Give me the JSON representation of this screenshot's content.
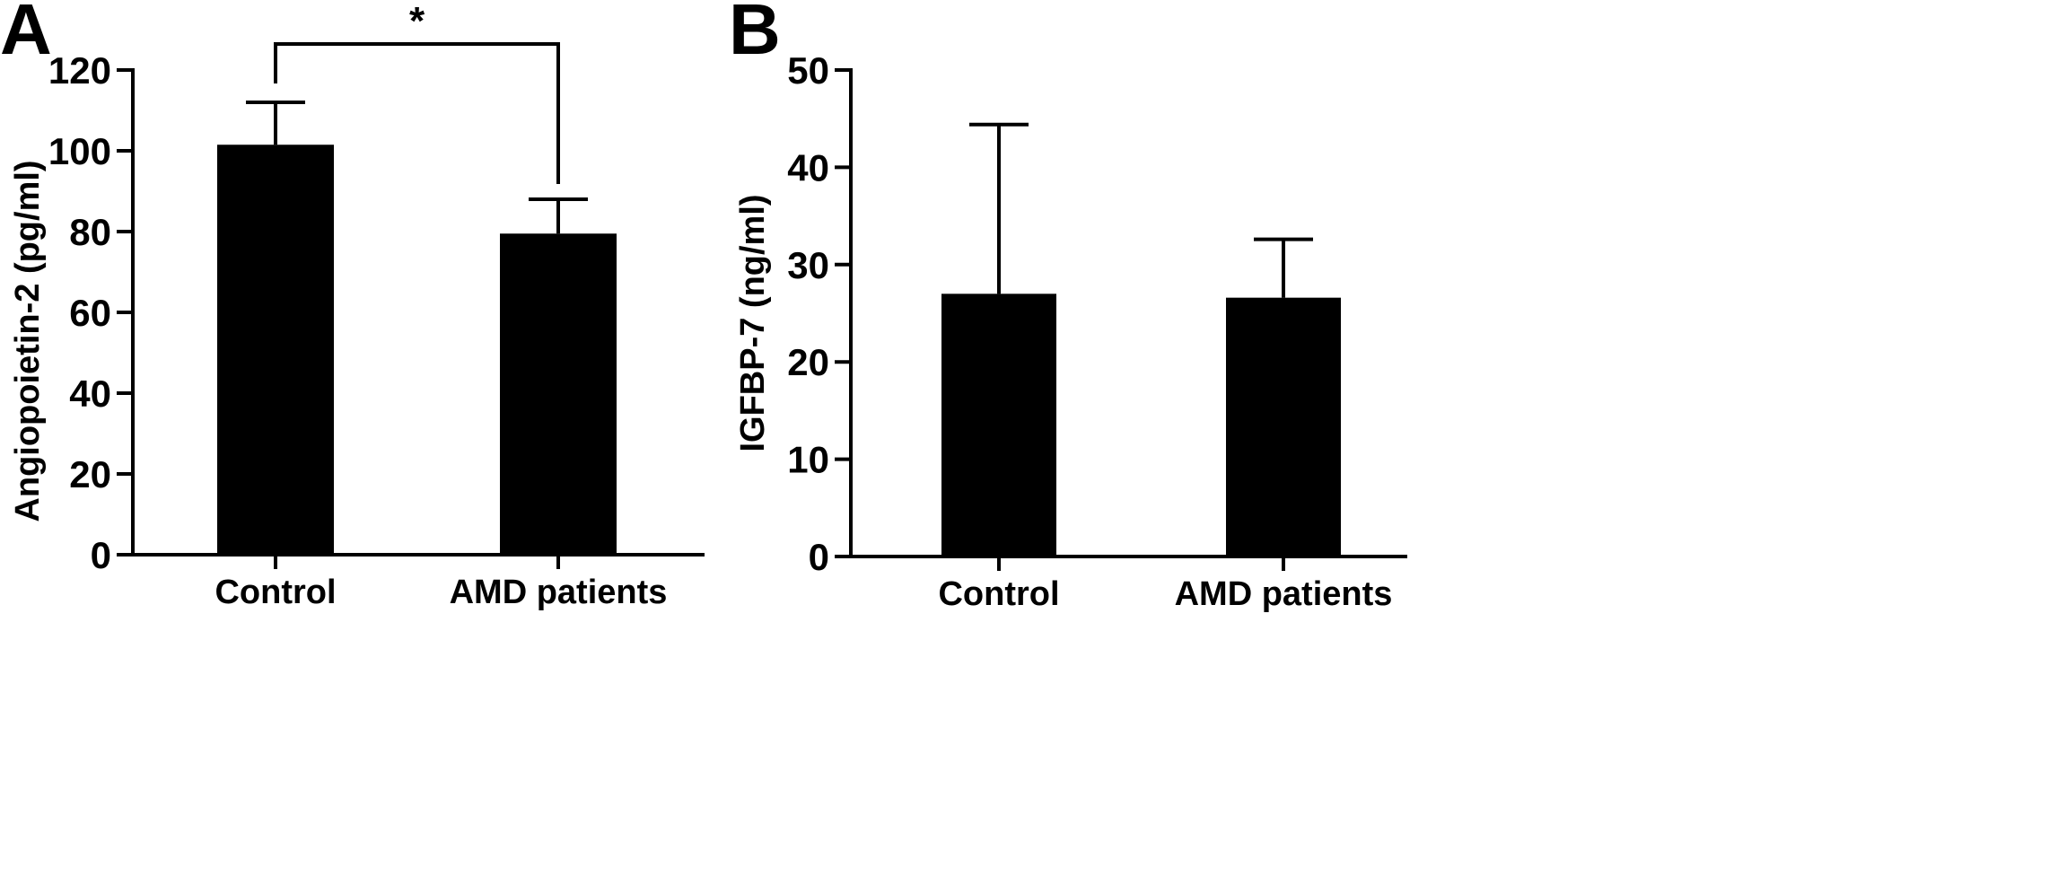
{
  "panels": [
    {
      "letter": "A"
    },
    {
      "letter": "B"
    }
  ],
  "chart_data": [
    {
      "type": "bar",
      "panel": "A",
      "categories": [
        "Control",
        "AMD patients"
      ],
      "series": [
        {
          "values": [
            101.5,
            79.5
          ],
          "error_upper": [
            112.0,
            88.0
          ]
        }
      ],
      "title": "",
      "xlabel": "",
      "ylabel": "Angiopoietin-2 (pg/ml)",
      "ylim": [
        0,
        120
      ],
      "yticks": [
        0,
        20,
        40,
        60,
        80,
        100,
        120
      ],
      "grid": false,
      "significance": {
        "between": [
          "Control",
          "AMD patients"
        ],
        "label": "*"
      }
    },
    {
      "type": "bar",
      "panel": "B",
      "categories": [
        "Control",
        "AMD patients"
      ],
      "series": [
        {
          "values": [
            27.0,
            26.6
          ],
          "error_upper": [
            44.4,
            32.6
          ]
        }
      ],
      "title": "",
      "xlabel": "",
      "ylabel": "IGFBP-7 (ng/ml)",
      "ylim": [
        0,
        50
      ],
      "yticks": [
        0,
        10,
        20,
        30,
        40,
        50
      ],
      "grid": false
    }
  ]
}
